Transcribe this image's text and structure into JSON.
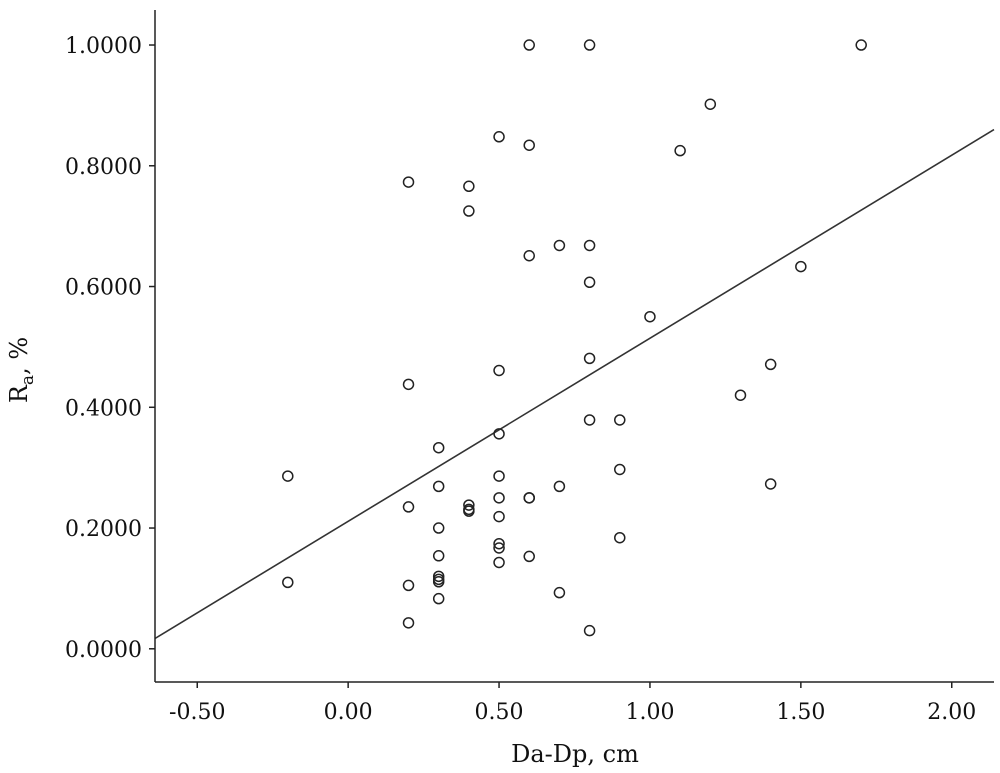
{
  "chart_data": {
    "type": "scatter",
    "xlabel": "Da-Dp, cm",
    "ylabel_main": "R",
    "ylabel_sub": "a",
    "ylabel_tail": ", %",
    "xlim": [
      -0.64,
      2.14
    ],
    "ylim": [
      -0.055,
      1.058
    ],
    "xticks": [
      -0.5,
      0.0,
      0.5,
      1.0,
      1.5,
      2.0
    ],
    "xtick_labels": [
      "-0.50",
      "0.00",
      "0.50",
      "1.00",
      "1.50",
      "2.00"
    ],
    "yticks": [
      0.0,
      0.2,
      0.4,
      0.6,
      0.8,
      1.0
    ],
    "ytick_labels": [
      "0.0000",
      "0.2000",
      "0.4000",
      "0.6000",
      "0.8000",
      "1.0000"
    ],
    "grid": false,
    "fit_line": {
      "slope": 0.3032,
      "intercept": 0.2111
    },
    "points": [
      [
        0.6,
        1.0
      ],
      [
        0.8,
        1.0
      ],
      [
        1.7,
        1.0
      ],
      [
        1.2,
        0.902
      ],
      [
        0.5,
        0.848
      ],
      [
        0.6,
        0.834
      ],
      [
        1.1,
        0.825
      ],
      [
        0.2,
        0.773
      ],
      [
        0.4,
        0.766
      ],
      [
        0.4,
        0.725
      ],
      [
        0.7,
        0.668
      ],
      [
        0.8,
        0.668
      ],
      [
        0.6,
        0.651
      ],
      [
        0.8,
        0.607
      ],
      [
        1.5,
        0.633
      ],
      [
        1.0,
        0.55
      ],
      [
        0.8,
        0.481
      ],
      [
        1.4,
        0.471
      ],
      [
        0.5,
        0.461
      ],
      [
        0.2,
        0.438
      ],
      [
        1.3,
        0.42
      ],
      [
        0.8,
        0.379
      ],
      [
        0.9,
        0.379
      ],
      [
        0.5,
        0.356
      ],
      [
        0.3,
        0.333
      ],
      [
        0.9,
        0.297
      ],
      [
        -0.2,
        0.286
      ],
      [
        0.5,
        0.286
      ],
      [
        0.3,
        0.269
      ],
      [
        0.7,
        0.269
      ],
      [
        1.4,
        0.273
      ],
      [
        0.5,
        0.25
      ],
      [
        0.6,
        0.25
      ],
      [
        0.6,
        0.25
      ],
      [
        0.2,
        0.235
      ],
      [
        0.4,
        0.238
      ],
      [
        0.4,
        0.231
      ],
      [
        0.4,
        0.228
      ],
      [
        0.5,
        0.219
      ],
      [
        0.3,
        0.2
      ],
      [
        0.9,
        0.184
      ],
      [
        0.5,
        0.174
      ],
      [
        0.5,
        0.167
      ],
      [
        0.3,
        0.154
      ],
      [
        0.6,
        0.153
      ],
      [
        0.5,
        0.143
      ],
      [
        0.3,
        0.12
      ],
      [
        0.3,
        0.115
      ],
      [
        0.3,
        0.111
      ],
      [
        -0.2,
        0.11
      ],
      [
        0.2,
        0.105
      ],
      [
        0.7,
        0.093
      ],
      [
        0.3,
        0.083
      ],
      [
        0.2,
        0.043
      ],
      [
        0.8,
        0.03
      ]
    ]
  }
}
